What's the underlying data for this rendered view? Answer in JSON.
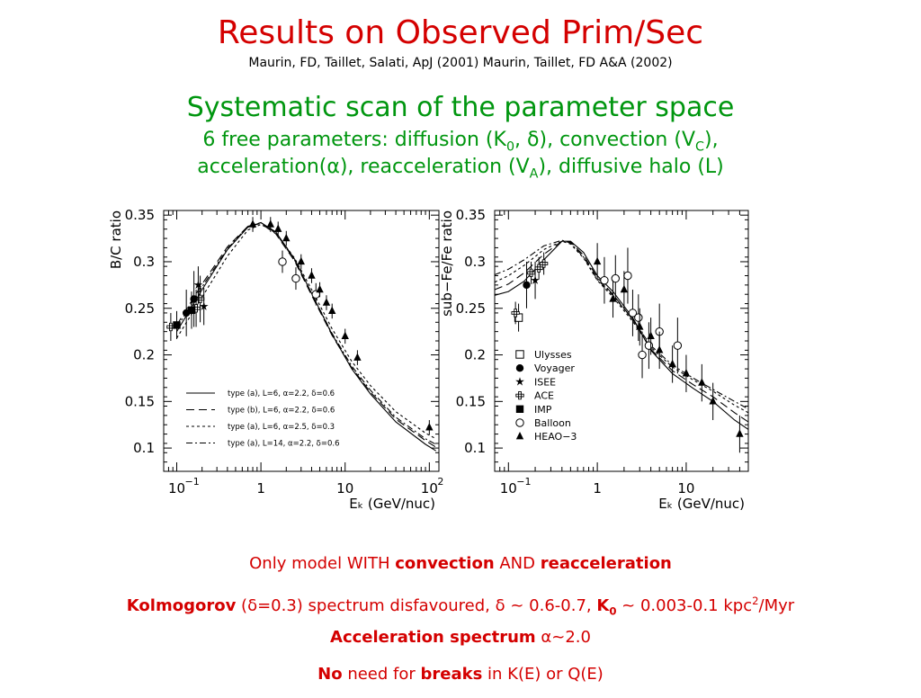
{
  "title": "Results on Observed Prim/Sec",
  "references": "Maurin, FD, Taillet, Salati, ApJ (2001)  Maurin, Taillet, FD A&A (2002)",
  "subtitle": "Systematic scan of the parameter space",
  "params_line1": {
    "pre": "6 free parameters: diffusion (K",
    "sub1": "0",
    "mid1": ", ",
    "delta": "δ",
    "mid2": "), convection (V",
    "sub2": "C",
    "post": "),"
  },
  "params_line2": {
    "pre": "acceleration(α), reacceleration (V",
    "sub": "A",
    "post": "), diffusive halo (L)"
  },
  "notes": {
    "n1": {
      "t1": "Only model WITH ",
      "b1": "convection",
      "t2": " AND ",
      "b2": "reacceleration"
    },
    "n2": {
      "b1": "Kolmogorov",
      "t1": " (δ=0.3) spectrum disfavoured, δ ~ 0.6-0.7,  ",
      "b2": "K",
      "sub": "0",
      "t2": " ~ 0.003-0.1 kpc",
      "sup": "2",
      "t3": "/Myr"
    },
    "n3": {
      "b1": "Acceleration spectrum",
      "t1": " α~2.0"
    },
    "n4": {
      "b1": "No",
      "t1": " need for ",
      "b2": "breaks",
      "t2": " in K(E) or Q(E)"
    }
  },
  "chart_data": [
    {
      "type": "line",
      "ylabel": "B/C ratio",
      "xlabel": "Eₖ (GeV/nuc)",
      "xscale": "log",
      "xlim": [
        0.07,
        130
      ],
      "ylim": [
        0.075,
        0.355
      ],
      "x_ticks": [
        {
          "v": 0.1,
          "label": "10",
          "sup": "−1"
        },
        {
          "v": 1,
          "label": "1",
          "sup": ""
        },
        {
          "v": 10,
          "label": "10",
          "sup": ""
        },
        {
          "v": 100,
          "label": "10",
          "sup": "2"
        }
      ],
      "y_ticks": [
        "0.1",
        "0.15",
        "0.2",
        "0.25",
        "0.3",
        "0.35"
      ],
      "legend_position": "bottom-left",
      "series": [
        {
          "name": "type (a), L=6, α=2.2, δ=0.6",
          "dash": "",
          "points": [
            [
              0.1,
              0.225
            ],
            [
              0.2,
              0.27
            ],
            [
              0.4,
              0.313
            ],
            [
              0.7,
              0.337
            ],
            [
              1.0,
              0.342
            ],
            [
              1.5,
              0.332
            ],
            [
              2.5,
              0.303
            ],
            [
              4,
              0.266
            ],
            [
              7,
              0.222
            ],
            [
              12,
              0.185
            ],
            [
              20,
              0.158
            ],
            [
              40,
              0.128
            ],
            [
              90,
              0.104
            ],
            [
              120,
              0.097
            ]
          ]
        },
        {
          "name": "type (b), L=6, α=2.2, δ=0.6",
          "dash": "9,5",
          "points": [
            [
              0.1,
              0.232
            ],
            [
              0.2,
              0.276
            ],
            [
              0.4,
              0.316
            ],
            [
              0.7,
              0.338
            ],
            [
              1.0,
              0.341
            ],
            [
              1.5,
              0.33
            ],
            [
              2.5,
              0.301
            ],
            [
              4,
              0.264
            ],
            [
              7,
              0.221
            ],
            [
              12,
              0.186
            ],
            [
              20,
              0.16
            ],
            [
              40,
              0.131
            ],
            [
              90,
              0.108
            ],
            [
              120,
              0.101
            ]
          ]
        },
        {
          "name": "type (a), L=6, α=2.5, δ=0.3",
          "dash": "3,3",
          "points": [
            [
              0.1,
              0.218
            ],
            [
              0.2,
              0.262
            ],
            [
              0.4,
              0.306
            ],
            [
              0.7,
              0.334
            ],
            [
              1.0,
              0.34
            ],
            [
              1.5,
              0.331
            ],
            [
              2.5,
              0.304
            ],
            [
              4,
              0.27
            ],
            [
              7,
              0.228
            ],
            [
              12,
              0.193
            ],
            [
              20,
              0.167
            ],
            [
              40,
              0.139
            ],
            [
              90,
              0.116
            ],
            [
              120,
              0.11
            ]
          ]
        },
        {
          "name": "type (a), L=14, α=2.2, δ=0.6",
          "dash": "7,3,2,3",
          "points": [
            [
              0.1,
              0.229
            ],
            [
              0.2,
              0.273
            ],
            [
              0.4,
              0.314
            ],
            [
              0.7,
              0.338
            ],
            [
              1.0,
              0.342
            ],
            [
              1.5,
              0.331
            ],
            [
              2.5,
              0.302
            ],
            [
              4,
              0.266
            ],
            [
              7,
              0.223
            ],
            [
              12,
              0.188
            ],
            [
              20,
              0.162
            ],
            [
              40,
              0.133
            ],
            [
              90,
              0.11
            ],
            [
              120,
              0.104
            ]
          ]
        }
      ],
      "datasets": [
        {
          "marker": "plus",
          "points": [
            [
              0.085,
              0.23,
              0.015
            ],
            [
              0.17,
              0.25,
              0.02
            ],
            [
              0.19,
              0.26,
              0.025
            ]
          ]
        },
        {
          "marker": "filled-square",
          "points": [
            [
              0.1,
              0.232,
              0.015
            ],
            [
              0.15,
              0.248,
              0.02
            ]
          ]
        },
        {
          "marker": "filled-circle",
          "points": [
            [
              0.13,
              0.245,
              0.025
            ],
            [
              0.16,
              0.26,
              0.03
            ]
          ]
        },
        {
          "marker": "star",
          "points": [
            [
              0.18,
              0.275,
              0.02
            ],
            [
              0.21,
              0.252,
              0.02
            ]
          ]
        },
        {
          "marker": "open-circle",
          "points": [
            [
              1.8,
              0.3,
              0.012
            ],
            [
              2.6,
              0.282,
              0.012
            ],
            [
              4.5,
              0.265,
              0.012
            ]
          ]
        },
        {
          "marker": "filled-triangle",
          "points": [
            [
              0.8,
              0.34,
              0.008
            ],
            [
              1.3,
              0.34,
              0.008
            ],
            [
              1.6,
              0.335,
              0.008
            ],
            [
              2.0,
              0.325,
              0.008
            ],
            [
              3.0,
              0.3,
              0.008
            ],
            [
              4.0,
              0.285,
              0.008
            ],
            [
              5.0,
              0.27,
              0.008
            ],
            [
              6.0,
              0.256,
              0.008
            ],
            [
              7.0,
              0.247,
              0.008
            ],
            [
              10,
              0.22,
              0.008
            ],
            [
              14,
              0.197,
              0.008
            ],
            [
              100,
              0.122,
              0.008
            ]
          ]
        }
      ]
    },
    {
      "type": "line",
      "ylabel": "sub−Fe/Fe ratio",
      "xlabel": "Eₖ (GeV/nuc)",
      "xscale": "log",
      "xlim": [
        0.07,
        50
      ],
      "ylim": [
        0.075,
        0.355
      ],
      "x_ticks": [
        {
          "v": 0.1,
          "label": "10",
          "sup": "−1"
        },
        {
          "v": 1,
          "label": "1",
          "sup": ""
        },
        {
          "v": 10,
          "label": "10",
          "sup": ""
        }
      ],
      "y_ticks": [
        "0.1",
        "0.15",
        "0.2",
        "0.25",
        "0.3",
        "0.35"
      ],
      "legend_position": "center-right",
      "legend_entries": [
        {
          "marker": "open-square",
          "label": "Ulysses"
        },
        {
          "marker": "filled-circle",
          "label": "Voyager"
        },
        {
          "marker": "star",
          "label": "ISEE"
        },
        {
          "marker": "plus",
          "label": "ACE"
        },
        {
          "marker": "filled-square",
          "label": "IMP"
        },
        {
          "marker": "open-circle",
          "label": "Balloon"
        },
        {
          "marker": "filled-triangle",
          "label": "HEAO−3"
        }
      ],
      "series": [
        {
          "dash": "",
          "points": [
            [
              0.07,
              0.264
            ],
            [
              0.1,
              0.268
            ],
            [
              0.15,
              0.279
            ],
            [
              0.25,
              0.302
            ],
            [
              0.4,
              0.322
            ],
            [
              0.5,
              0.322
            ],
            [
              0.7,
              0.31
            ],
            [
              1.0,
              0.285
            ],
            [
              1.5,
              0.268
            ],
            [
              2.5,
              0.24
            ],
            [
              4,
              0.205
            ],
            [
              7,
              0.18
            ],
            [
              12,
              0.164
            ],
            [
              20,
              0.15
            ],
            [
              35,
              0.13
            ],
            [
              50,
              0.12
            ]
          ]
        },
        {
          "dash": "9,5",
          "points": [
            [
              0.07,
              0.27
            ],
            [
              0.1,
              0.276
            ],
            [
              0.15,
              0.288
            ],
            [
              0.25,
              0.308
            ],
            [
              0.4,
              0.322
            ],
            [
              0.5,
              0.321
            ],
            [
              0.7,
              0.307
            ],
            [
              1.0,
              0.283
            ],
            [
              1.5,
              0.265
            ],
            [
              2.5,
              0.238
            ],
            [
              4,
              0.206
            ],
            [
              7,
              0.183
            ],
            [
              12,
              0.168
            ],
            [
              20,
              0.155
            ],
            [
              35,
              0.138
            ],
            [
              50,
              0.128
            ]
          ]
        },
        {
          "dash": "3,3",
          "points": [
            [
              0.07,
              0.278
            ],
            [
              0.1,
              0.285
            ],
            [
              0.15,
              0.296
            ],
            [
              0.25,
              0.313
            ],
            [
              0.4,
              0.322
            ],
            [
              0.5,
              0.319
            ],
            [
              0.7,
              0.304
            ],
            [
              1.0,
              0.28
            ],
            [
              1.5,
              0.262
            ],
            [
              2.5,
              0.236
            ],
            [
              4,
              0.208
            ],
            [
              7,
              0.187
            ],
            [
              12,
              0.173
            ],
            [
              20,
              0.161
            ],
            [
              35,
              0.146
            ],
            [
              50,
              0.138
            ]
          ]
        },
        {
          "dash": "7,3,2,3",
          "points": [
            [
              0.07,
              0.286
            ],
            [
              0.1,
              0.292
            ],
            [
              0.15,
              0.302
            ],
            [
              0.25,
              0.317
            ],
            [
              0.4,
              0.323
            ],
            [
              0.5,
              0.32
            ],
            [
              0.7,
              0.305
            ],
            [
              1.0,
              0.281
            ],
            [
              1.5,
              0.264
            ],
            [
              2.5,
              0.238
            ],
            [
              4,
              0.21
            ],
            [
              7,
              0.189
            ],
            [
              12,
              0.175
            ],
            [
              20,
              0.163
            ],
            [
              35,
              0.15
            ],
            [
              50,
              0.142
            ]
          ]
        }
      ],
      "datasets": [
        {
          "marker": "open-square",
          "points": [
            [
              0.13,
              0.24,
              0.015
            ]
          ]
        },
        {
          "marker": "plus",
          "points": [
            [
              0.12,
              0.245,
              0.012
            ],
            [
              0.18,
              0.288,
              0.012
            ],
            [
              0.22,
              0.293,
              0.012
            ],
            [
              0.25,
              0.298,
              0.012
            ]
          ]
        },
        {
          "marker": "filled-circle",
          "points": [
            [
              0.16,
              0.275,
              0.025
            ]
          ]
        },
        {
          "marker": "star",
          "points": [
            [
              0.2,
              0.28,
              0.02
            ]
          ]
        },
        {
          "marker": "open-circle",
          "points": [
            [
              1.2,
              0.28,
              0.025
            ],
            [
              1.6,
              0.282,
              0.025
            ],
            [
              2.2,
              0.285,
              0.03
            ],
            [
              2.5,
              0.245,
              0.025
            ],
            [
              2.9,
              0.24,
              0.025
            ],
            [
              3.2,
              0.2,
              0.025
            ],
            [
              3.8,
              0.21,
              0.025
            ],
            [
              5.0,
              0.225,
              0.03
            ],
            [
              8.0,
              0.21,
              0.03
            ]
          ]
        },
        {
          "marker": "filled-triangle",
          "points": [
            [
              1.0,
              0.3,
              0.02
            ],
            [
              1.5,
              0.26,
              0.02
            ],
            [
              2.0,
              0.27,
              0.02
            ],
            [
              3.0,
              0.23,
              0.02
            ],
            [
              4.0,
              0.22,
              0.02
            ],
            [
              5.0,
              0.205,
              0.02
            ],
            [
              7.0,
              0.19,
              0.02
            ],
            [
              10,
              0.18,
              0.02
            ],
            [
              15,
              0.17,
              0.02
            ],
            [
              20,
              0.15,
              0.02
            ],
            [
              40,
              0.115,
              0.02
            ]
          ]
        }
      ]
    }
  ]
}
